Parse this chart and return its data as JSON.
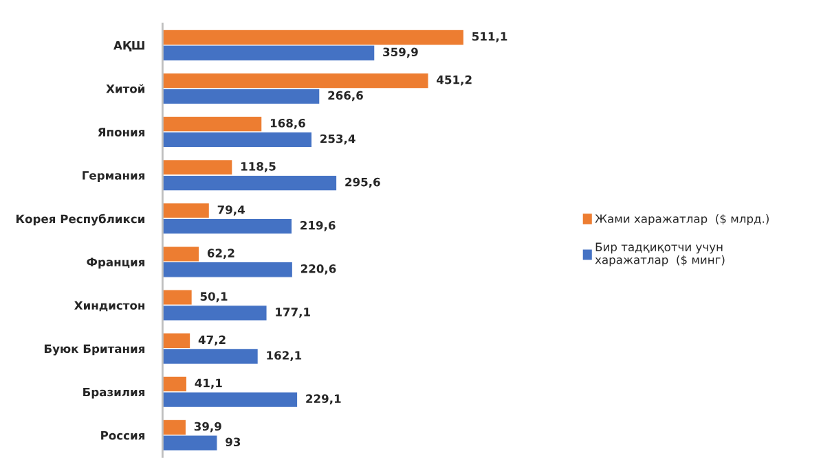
{
  "chart_data": {
    "type": "bar",
    "orientation": "horizontal",
    "legend": "right",
    "categories": [
      "АҚШ",
      "Хитой",
      "Япония",
      "Германия",
      "Корея Республикси",
      "Франция",
      "Хиндистон",
      "Буюк Британия",
      "Бразилия",
      "Россия"
    ],
    "series": [
      {
        "name": "Жами харажатлар  ($ млрд.)",
        "color": "#ed7d31",
        "values": [
          511.1,
          451.2,
          168.6,
          118.5,
          79.4,
          62.2,
          50.1,
          47.2,
          41.1,
          39.9
        ],
        "value_labels": [
          "511,1",
          "451,2",
          "168,6",
          "118,5",
          "79,4",
          "62,2",
          "50,1",
          "47,2",
          "41,1",
          "39,9"
        ]
      },
      {
        "name": "Бир тадқиқотчи учун\nхаражатлар  ($ минг)",
        "color": "#4472c4",
        "values": [
          359.9,
          266.6,
          253.4,
          295.6,
          219.6,
          220.6,
          177.1,
          162.1,
          229.1,
          93
        ],
        "value_labels": [
          "359,9",
          "266,6",
          "253,4",
          "295,6",
          "219,6",
          "220,6",
          "177,1",
          "162,1",
          "229,1",
          "93"
        ]
      }
    ]
  }
}
